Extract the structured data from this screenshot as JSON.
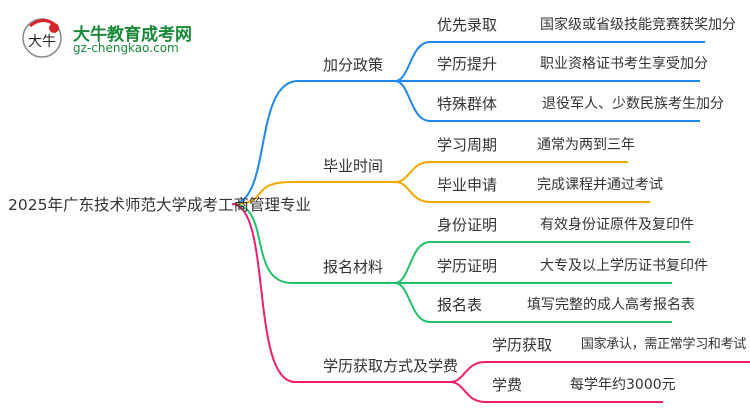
{
  "logo": {
    "name": "大牛教育成考网",
    "url": "gz-chengkao.com",
    "mark": "大牛"
  },
  "root": "2025年广东技术师范大学成考工商管理专业",
  "branches": [
    {
      "label": "加分政策",
      "color": "#1e87f0",
      "items": [
        {
          "label": "优先录取",
          "detail": "国家级或省级技能竞赛获奖加分"
        },
        {
          "label": "学历提升",
          "detail": "职业资格证书考生享受加分"
        },
        {
          "label": "特殊群体",
          "detail": "退役军人、少数民族考生加分"
        }
      ]
    },
    {
      "label": "毕业时间",
      "color": "#f2a900",
      "items": [
        {
          "label": "学习周期",
          "detail": "通常为两到三年"
        },
        {
          "label": "毕业申请",
          "detail": "完成课程并通过考试"
        }
      ]
    },
    {
      "label": "报名材料",
      "color": "#1fc26b",
      "items": [
        {
          "label": "身份证明",
          "detail": "有效身份证原件及复印件"
        },
        {
          "label": "学历证明",
          "detail": "大专及以上学历证书复印件"
        },
        {
          "label": "报名表",
          "detail": "填写完整的成人高考报名表"
        }
      ]
    },
    {
      "label": "学历获取方式及学费",
      "color": "#ee1f6c",
      "items": [
        {
          "label": "学历获取",
          "detail": "国家承认，需正常学习和考试"
        },
        {
          "label": "学费",
          "detail": "每学年约3000元"
        }
      ]
    }
  ]
}
